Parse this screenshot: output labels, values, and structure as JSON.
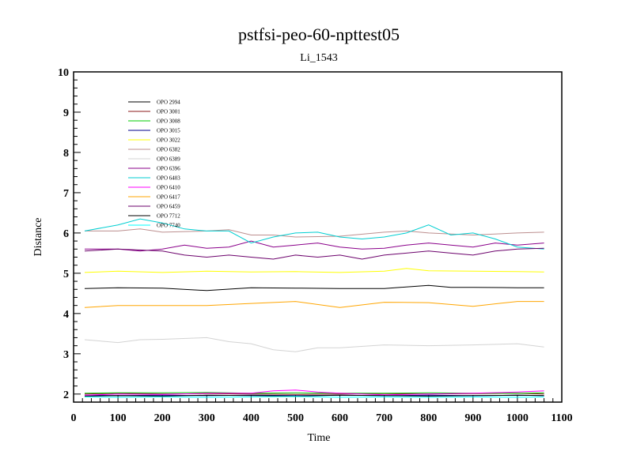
{
  "chart_data": {
    "type": "line",
    "title": "pstfsi-peo-60-npttest05",
    "subtitle": "Li_1543",
    "xlabel": "Time",
    "ylabel": "Distance",
    "xlim": [
      0,
      1100
    ],
    "ylim": [
      1.8,
      10
    ],
    "xticks": [
      "0",
      "100",
      "200",
      "300",
      "400",
      "500",
      "600",
      "700",
      "800",
      "900",
      "1000",
      "1100"
    ],
    "yticks": [
      "2",
      "3",
      "4",
      "5",
      "6",
      "7",
      "8",
      "9",
      "10"
    ],
    "legend_position": "top-left",
    "series": [
      {
        "name": "OPO 2994",
        "color": "#000000",
        "x": [
          25,
          100,
          200,
          300,
          400,
          500,
          600,
          700,
          800,
          850,
          900,
          1000,
          1060
        ],
        "y": [
          4.62,
          4.64,
          4.63,
          4.57,
          4.64,
          4.63,
          4.62,
          4.62,
          4.7,
          4.65,
          4.65,
          4.64,
          4.64
        ]
      },
      {
        "name": "OPO 3001",
        "color": "#8b1a1a",
        "x": [
          25,
          100,
          200,
          300,
          400,
          500,
          600,
          700,
          800,
          900,
          1000,
          1060
        ],
        "y": [
          2.0,
          2.02,
          2.0,
          2.01,
          2.0,
          1.99,
          2.0,
          2.01,
          2.0,
          2.01,
          2.02,
          2.0
        ]
      },
      {
        "name": "OPO 3008",
        "color": "#00cc00",
        "x": [
          25,
          100,
          200,
          300,
          400,
          500,
          600,
          700,
          800,
          900,
          1000,
          1060
        ],
        "y": [
          2.02,
          2.03,
          2.03,
          2.04,
          2.02,
          2.03,
          2.02,
          2.02,
          2.03,
          2.02,
          2.02,
          2.03
        ]
      },
      {
        "name": "OPO 3015",
        "color": "#00008b",
        "x": [
          25,
          100,
          200,
          300,
          400,
          500,
          600,
          700,
          800,
          900,
          1000,
          1060
        ],
        "y": [
          1.97,
          1.96,
          1.97,
          1.96,
          1.97,
          1.96,
          1.97,
          1.96,
          1.97,
          1.96,
          1.97,
          1.96
        ]
      },
      {
        "name": "OPO 3022",
        "color": "#ffff00",
        "x": [
          25,
          100,
          200,
          300,
          400,
          500,
          600,
          700,
          750,
          800,
          900,
          1000,
          1060
        ],
        "y": [
          5.02,
          5.05,
          5.02,
          5.05,
          5.03,
          5.04,
          5.02,
          5.05,
          5.12,
          5.06,
          5.05,
          5.04,
          5.03
        ]
      },
      {
        "name": "OPO 6382",
        "color": "#bc8f8f",
        "x": [
          25,
          100,
          150,
          200,
          300,
          350,
          400,
          450,
          500,
          600,
          700,
          750,
          800,
          900,
          1000,
          1060
        ],
        "y": [
          6.05,
          6.05,
          6.1,
          6.02,
          6.05,
          6.08,
          5.95,
          5.95,
          5.9,
          5.92,
          6.02,
          6.05,
          6.0,
          5.95,
          6.0,
          6.02
        ]
      },
      {
        "name": "OPO 6389",
        "color": "#d3d3d3",
        "x": [
          25,
          100,
          150,
          200,
          300,
          350,
          400,
          450,
          500,
          550,
          600,
          700,
          800,
          900,
          1000,
          1060
        ],
        "y": [
          3.35,
          3.28,
          3.35,
          3.36,
          3.4,
          3.3,
          3.25,
          3.1,
          3.05,
          3.15,
          3.15,
          3.22,
          3.2,
          3.22,
          3.25,
          3.17
        ]
      },
      {
        "name": "OPO 6396",
        "color": "#8a008a",
        "x": [
          25,
          100,
          150,
          200,
          250,
          300,
          350,
          400,
          450,
          500,
          550,
          600,
          650,
          700,
          750,
          800,
          850,
          900,
          950,
          1000,
          1060
        ],
        "y": [
          5.6,
          5.6,
          5.55,
          5.6,
          5.7,
          5.62,
          5.65,
          5.8,
          5.65,
          5.7,
          5.75,
          5.65,
          5.6,
          5.62,
          5.7,
          5.75,
          5.7,
          5.65,
          5.75,
          5.7,
          5.75
        ]
      },
      {
        "name": "OPO 6403",
        "color": "#00ced1",
        "x": [
          25,
          100,
          150,
          200,
          250,
          300,
          350,
          400,
          450,
          500,
          550,
          600,
          650,
          700,
          750,
          800,
          850,
          900,
          950,
          1000,
          1060
        ],
        "y": [
          6.05,
          6.2,
          6.35,
          6.25,
          6.1,
          6.05,
          6.05,
          5.75,
          5.9,
          6.0,
          6.02,
          5.9,
          5.85,
          5.9,
          6.0,
          6.2,
          5.95,
          6.0,
          5.85,
          5.65,
          5.6
        ]
      },
      {
        "name": "OPO 6410",
        "color": "#ff00ff",
        "x": [
          25,
          100,
          200,
          300,
          400,
          450,
          500,
          550,
          600,
          700,
          800,
          900,
          1000,
          1060
        ],
        "y": [
          1.97,
          2.0,
          1.99,
          2.02,
          2.02,
          2.08,
          2.1,
          2.05,
          2.02,
          1.98,
          2.0,
          2.02,
          2.05,
          2.08
        ]
      },
      {
        "name": "OPO 6417",
        "color": "#ffa500",
        "x": [
          25,
          100,
          200,
          300,
          400,
          500,
          600,
          700,
          800,
          900,
          1000,
          1060
        ],
        "y": [
          4.15,
          4.2,
          4.2,
          4.2,
          4.25,
          4.3,
          4.15,
          4.28,
          4.27,
          4.18,
          4.3,
          4.3
        ]
      },
      {
        "name": "OPO 6459",
        "color": "#6b006b",
        "x": [
          25,
          100,
          200,
          250,
          300,
          350,
          400,
          450,
          500,
          550,
          600,
          650,
          700,
          800,
          850,
          900,
          950,
          1000,
          1060
        ],
        "y": [
          5.55,
          5.6,
          5.55,
          5.45,
          5.4,
          5.45,
          5.4,
          5.35,
          5.45,
          5.4,
          5.45,
          5.35,
          5.45,
          5.55,
          5.5,
          5.45,
          5.55,
          5.6,
          5.62
        ]
      },
      {
        "name": "OPO 7712",
        "color": "#000000",
        "x": [
          25,
          100,
          200,
          300,
          400,
          500,
          600,
          700,
          800,
          900,
          1000,
          1060
        ],
        "y": [
          1.95,
          1.96,
          1.95,
          1.97,
          1.96,
          1.95,
          1.97,
          1.96,
          1.95,
          1.96,
          1.97,
          1.96
        ]
      },
      {
        "name": "OPO 7740",
        "color": "#00ffff",
        "x": [
          25,
          100,
          200,
          300,
          400,
          500,
          600,
          700,
          800,
          900,
          1000,
          1060
        ],
        "y": [
          1.93,
          1.92,
          1.93,
          1.92,
          1.93,
          1.94,
          1.92,
          1.93,
          1.92,
          1.93,
          1.92,
          1.93
        ]
      }
    ]
  }
}
